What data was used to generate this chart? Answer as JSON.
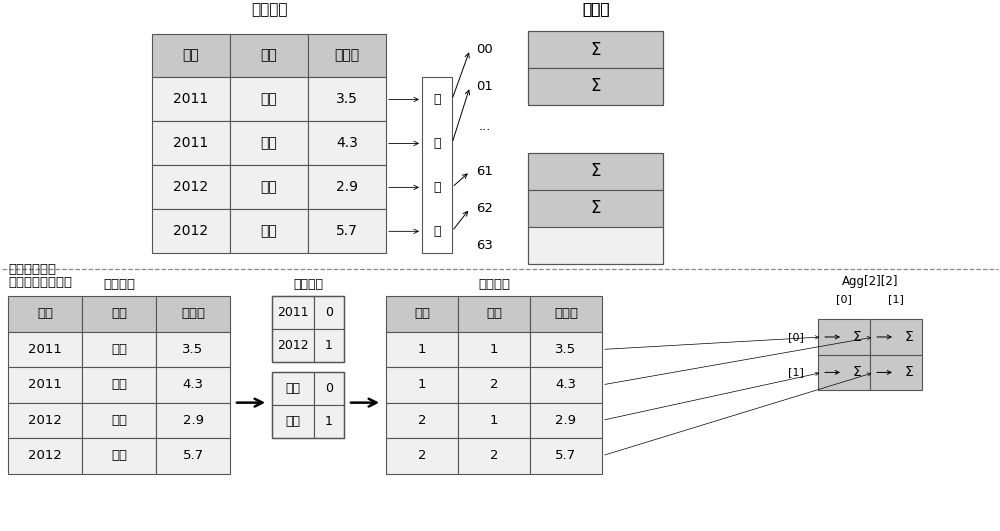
{
  "bg_color": "#ffffff",
  "header_color": "#c8c8c8",
  "cell_color": "#f0f0f0",
  "border_color": "#555555",
  "text_color": "#000000",
  "title_top": "输出记录",
  "title_hash": "哈希桶",
  "label_hash": "哈希分组聚集",
  "label_multi": "多维数组分组聚集",
  "top_table_headers": [
    "年份",
    "产品",
    "销售额"
  ],
  "top_table_data": [
    [
      "2011",
      "汽车",
      "3.5"
    ],
    [
      "2011",
      "家电",
      "4.3"
    ],
    [
      "2012",
      "汽车",
      "2.9"
    ],
    [
      "2012",
      "家电",
      "5.7"
    ]
  ],
  "hash_items": [
    "00",
    "01",
    "...",
    "61",
    "62",
    "63"
  ],
  "hash_sigma": [
    true,
    true,
    false,
    true,
    true,
    false
  ],
  "bottom_left_title": "输出记录",
  "bottom_left_headers": [
    "地区",
    "国家",
    "销售额"
  ],
  "bottom_left_data": [
    [
      "2011",
      "汽车",
      "3.5"
    ],
    [
      "2011",
      "家电",
      "4.3"
    ],
    [
      "2012",
      "汽车",
      "2.9"
    ],
    [
      "2012",
      "家电",
      "5.7"
    ]
  ],
  "code_title": "分组编码",
  "code_data_top": [
    [
      "2011",
      "0"
    ],
    [
      "2012",
      "1"
    ]
  ],
  "code_data_bot": [
    [
      "汽车",
      "0"
    ],
    [
      "家电",
      "1"
    ]
  ],
  "bottom_right_title": "输出记录",
  "bottom_right_headers": [
    "地区",
    "国家",
    "销售额"
  ],
  "bottom_right_data": [
    [
      "1",
      "1",
      "3.5"
    ],
    [
      "1",
      "2",
      "4.3"
    ],
    [
      "2",
      "1",
      "2.9"
    ],
    [
      "2",
      "2",
      "5.7"
    ]
  ],
  "agg_title": "Agg[2][2]",
  "agg_col_labels": [
    "[0]",
    "[1]"
  ],
  "agg_row_labels": [
    "[0]",
    "[1]"
  ],
  "sigma": "Σ",
  "hash_map_chars": [
    "哈",
    "希",
    "映",
    "射"
  ]
}
